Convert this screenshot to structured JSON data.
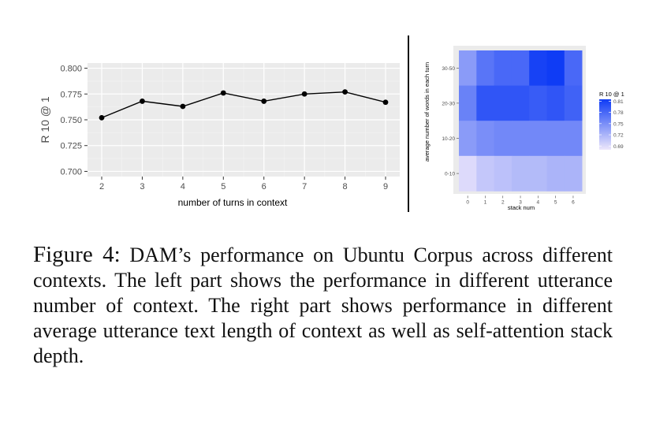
{
  "chart_data": [
    {
      "type": "line",
      "xlabel": "number of turns in context",
      "ylabel": "R 10 @ 1",
      "x": [
        2,
        3,
        4,
        5,
        6,
        7,
        8,
        9
      ],
      "series": [
        {
          "values": [
            0.752,
            0.768,
            0.763,
            0.776,
            0.768,
            0.775,
            0.777,
            0.767
          ]
        }
      ],
      "xticks": [
        "2",
        "3",
        "4",
        "5",
        "6",
        "7",
        "8",
        "9"
      ],
      "yticks": [
        "0.700",
        "0.725",
        "0.750",
        "0.775",
        "0.800"
      ],
      "ylim": [
        0.695,
        0.805
      ],
      "grid": true,
      "background": "#ebebeb",
      "line_color": "#000000"
    },
    {
      "type": "heatmap",
      "xlabel": "stack num",
      "ylabel": "average number of words in each turn",
      "xticks": [
        "0",
        "1",
        "2",
        "3",
        "4",
        "5",
        "6"
      ],
      "yticks": [
        "30-50",
        "20-30",
        "10-20",
        "0-10"
      ],
      "legend_title": "R 10 @ 1",
      "legend_ticks": [
        "0.81",
        "0.78",
        "0.75",
        "0.72",
        "0.69"
      ],
      "legend_range": [
        0.68,
        0.815
      ],
      "legend_placement": "right",
      "color_low": "#ede7fb",
      "color_high": "#0f3cf5",
      "values": [
        [
          0.74,
          0.77,
          0.78,
          0.78,
          0.81,
          0.815,
          0.78
        ],
        [
          0.76,
          0.795,
          0.795,
          0.795,
          0.79,
          0.795,
          0.785
        ],
        [
          0.74,
          0.75,
          0.755,
          0.755,
          0.755,
          0.755,
          0.755
        ],
        [
          0.69,
          0.705,
          0.71,
          0.715,
          0.715,
          0.72,
          0.72
        ]
      ]
    }
  ],
  "caption": {
    "label": "Figure 4:",
    "text": "DAM’s performance on Ubuntu Corpus across different contexts.  The left part shows the performance in different utterance number of context.  The right part shows performance in different average utterance text length of context as well as self-attention stack depth."
  }
}
